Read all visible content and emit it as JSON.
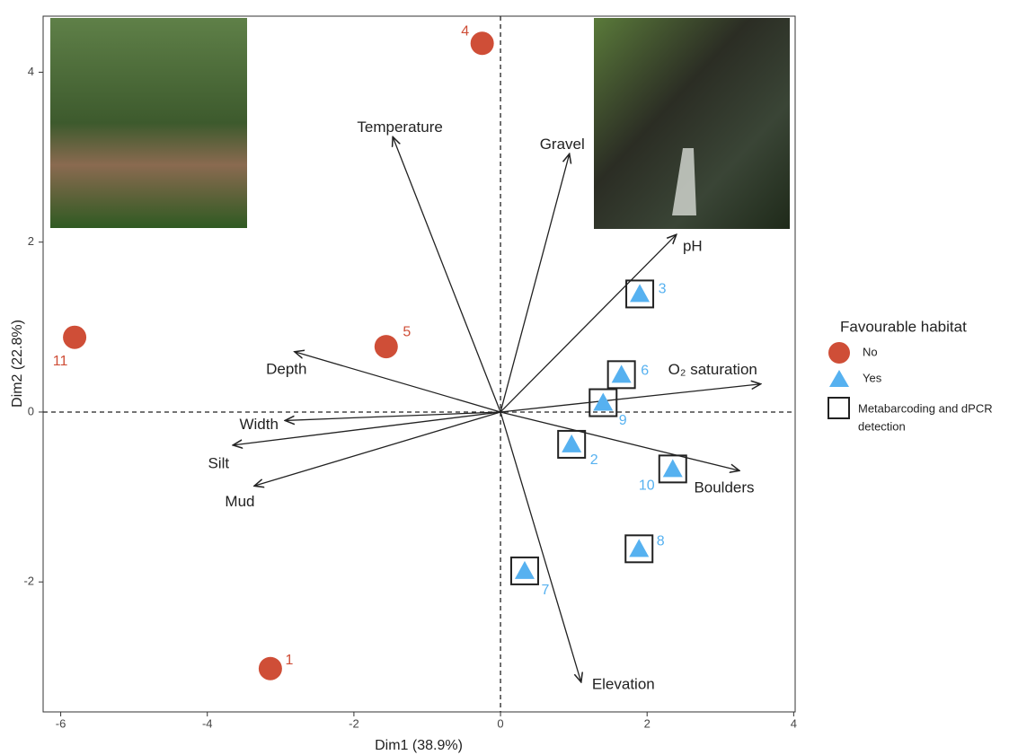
{
  "chart_data": {
    "type": "biplot",
    "x_label": "Dim1 (38.9%)",
    "y_label": "Dim2 (22.8%)",
    "xlim": [
      -6.24,
      4.02
    ],
    "ylim": [
      -3.53,
      4.66
    ],
    "xticks": [
      -6,
      -4,
      -2,
      0,
      2,
      4
    ],
    "yticks": [
      -2,
      0,
      2,
      4
    ],
    "legend_title": "Favourable habitat",
    "box_legend": [
      "Metabarcoding and dPCR",
      "detection"
    ],
    "series": [
      {
        "name": "No",
        "color": "#cf4e37",
        "marker": "circle",
        "labels": [
          "4",
          "11",
          "5",
          "1"
        ],
        "x": [
          -0.25,
          -5.81,
          -1.56,
          -3.14
        ],
        "values": [
          4.34,
          0.88,
          0.77,
          -3.02
        ],
        "boxed": [
          false,
          false,
          false,
          false
        ]
      },
      {
        "name": "Yes",
        "color": "#56b1f0",
        "marker": "triangle",
        "labels": [
          "3",
          "6",
          "9",
          "2",
          "10",
          "8",
          "7"
        ],
        "x": [
          1.9,
          1.65,
          1.4,
          0.97,
          2.35,
          1.89,
          0.33
        ],
        "values": [
          1.39,
          0.44,
          0.11,
          -0.38,
          -0.67,
          -1.61,
          -1.87
        ],
        "boxed": [
          true,
          true,
          true,
          true,
          true,
          true,
          true
        ]
      }
    ],
    "variables": {
      "names": [
        "Temperature",
        "Gravel",
        "pH",
        "O₂ saturation",
        "Boulders",
        "Elevation",
        "Mud",
        "Silt",
        "Width",
        "Depth"
      ],
      "x": [
        -1.47,
        0.94,
        2.4,
        3.55,
        3.26,
        1.1,
        -3.36,
        -3.65,
        -2.94,
        -2.81
      ],
      "values": [
        3.24,
        3.04,
        2.09,
        0.33,
        -0.69,
        -3.18,
        -0.87,
        -0.39,
        -0.1,
        0.71
      ]
    }
  }
}
